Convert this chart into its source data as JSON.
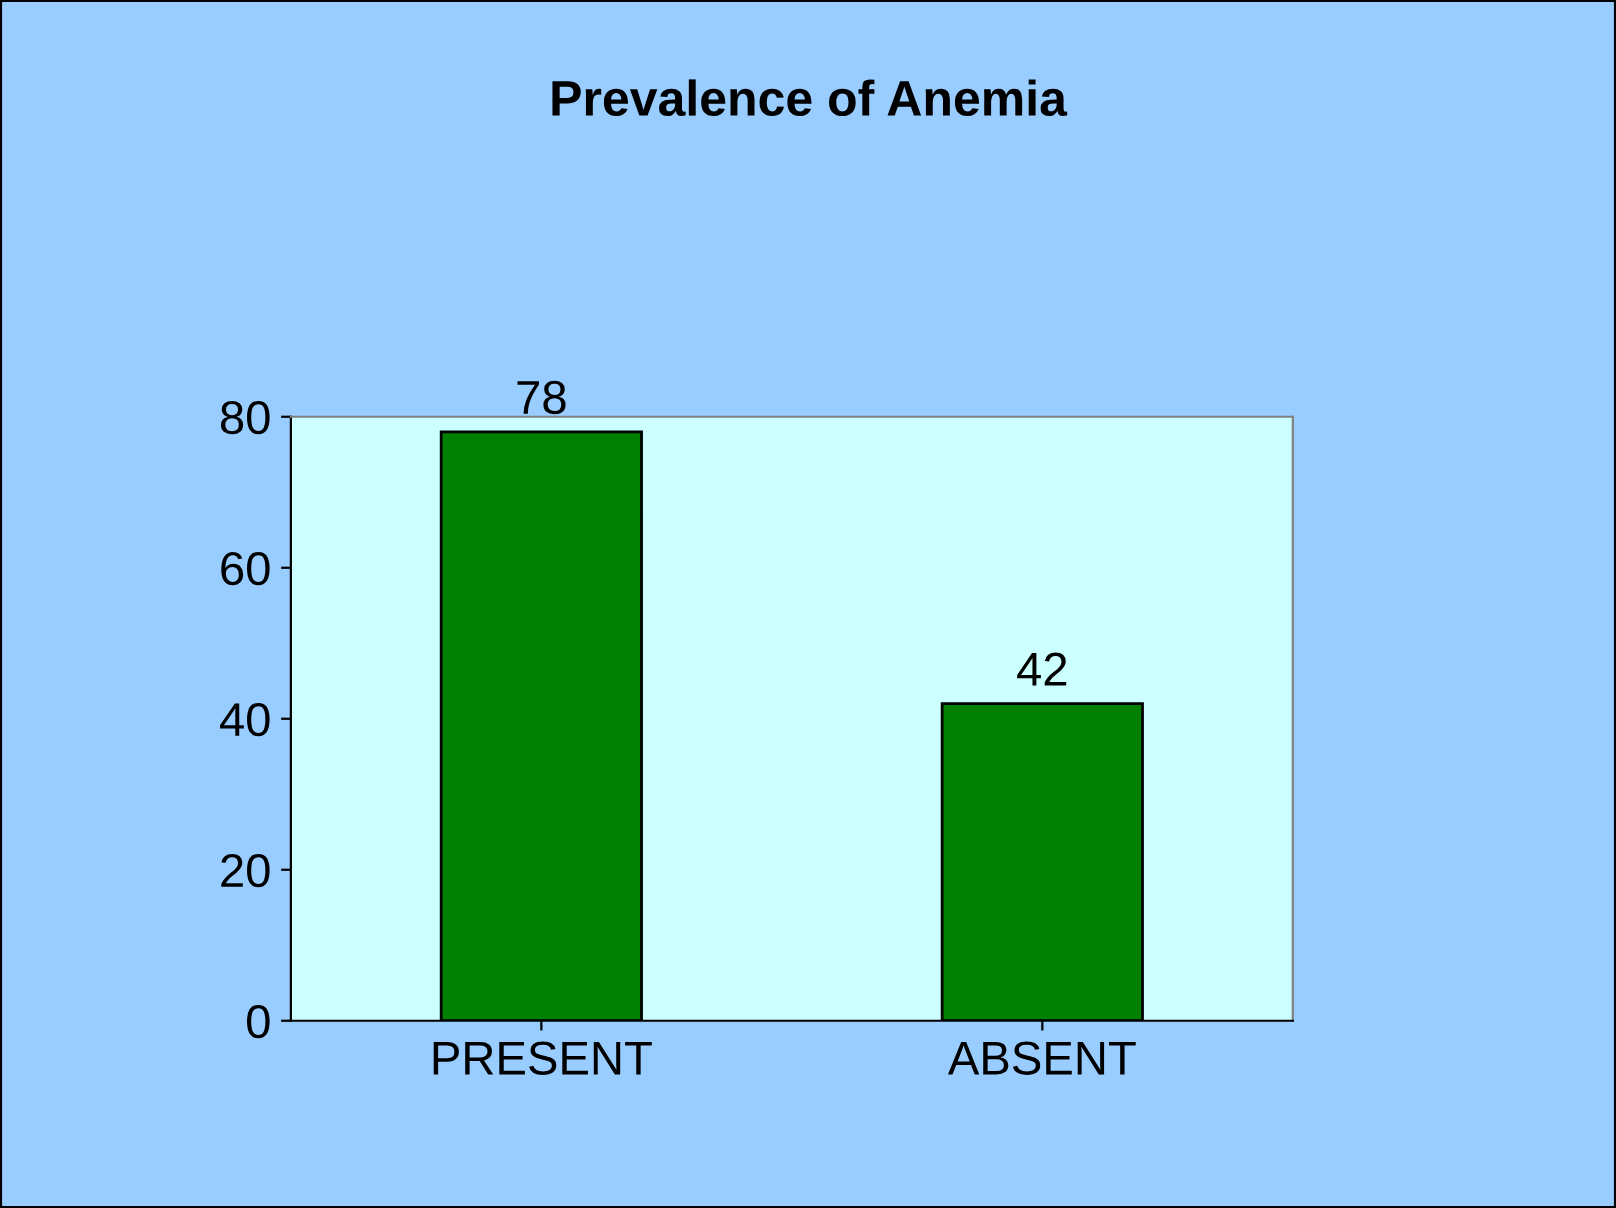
{
  "chart_data": {
    "type": "bar",
    "title": "Prevalence of Anemia",
    "categories": [
      "PRESENT",
      "ABSENT"
    ],
    "values": [
      78,
      42
    ],
    "color": "#008000",
    "ylim": [
      0,
      80
    ],
    "yticks": [
      0,
      20,
      40,
      60,
      80
    ],
    "data_labels": true,
    "grid": false
  }
}
